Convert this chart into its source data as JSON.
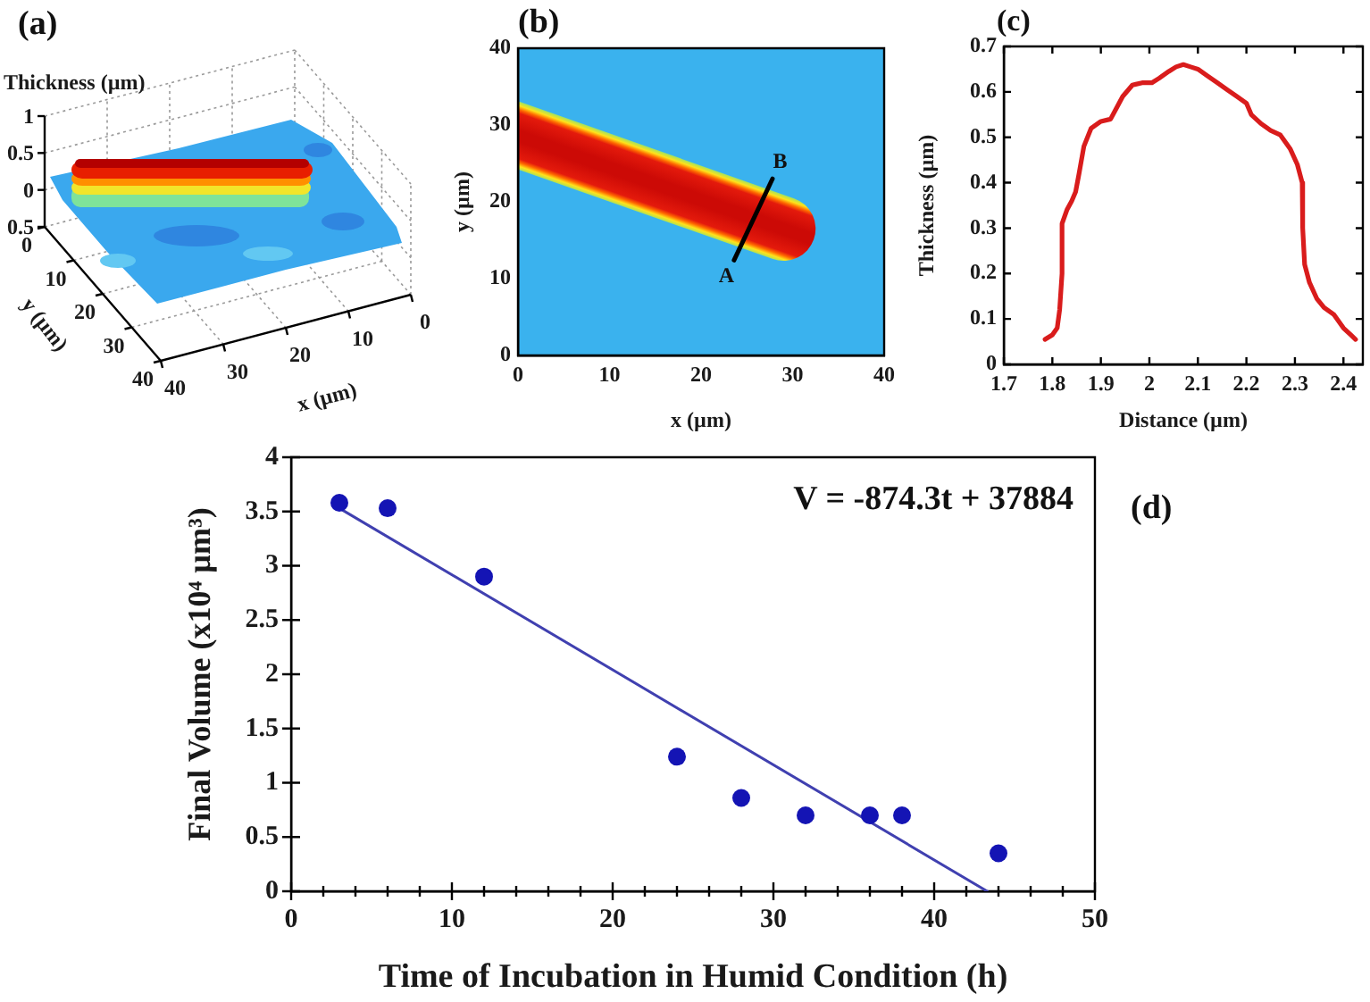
{
  "chart_data": [
    {
      "type": "other",
      "title": "(a)",
      "xlabel": "x (µm)",
      "ylabel": "y (µm)",
      "annotations": [
        "Thickness (µm)",
        "1",
        "0.5",
        "0",
        "0.5",
        "0",
        "10",
        "20",
        "30",
        "40",
        "40",
        "30",
        "20",
        "10",
        "0"
      ]
    },
    {
      "type": "line",
      "title": "(b)",
      "xlabel": "x (µm)",
      "ylabel": "y (µm)",
      "xlim": [
        0,
        40
      ],
      "xticks": [
        0,
        10,
        20,
        30,
        40
      ],
      "ylim": [
        0,
        40
      ],
      "yticks": [
        0,
        10,
        20,
        30,
        40
      ],
      "x": [
        23.6,
        27.8
      ],
      "values": [
        12.4,
        23
      ],
      "color": "#000000",
      "annotations": [
        {
          "text": "A",
          "x": 23.6,
          "y": 12.4
        },
        {
          "text": "B",
          "x": 27.8,
          "y": 23
        }
      ]
    },
    {
      "type": "line",
      "title": "(c)",
      "xlabel": "Distance (µm)",
      "ylabel": "Thickness (µm)",
      "xlim": [
        1.7,
        2.44
      ],
      "xticks": [
        1.7,
        1.8,
        1.9,
        2,
        2.1,
        2.2,
        2.3,
        2.4
      ],
      "ylim": [
        0,
        0.7
      ],
      "yticks": [
        0,
        0.1,
        0.2,
        0.3,
        0.4,
        0.5,
        0.6,
        0.7
      ],
      "x": [
        1.785,
        1.8,
        1.81,
        1.815,
        1.82,
        1.82,
        1.83,
        1.84,
        1.848,
        1.855,
        1.865,
        1.88,
        1.9,
        1.92,
        1.93,
        1.945,
        1.965,
        1.985,
        2.005,
        2.02,
        2.04,
        2.055,
        2.07,
        2.085,
        2.1,
        2.12,
        2.14,
        2.16,
        2.18,
        2.2,
        2.21,
        2.23,
        2.25,
        2.27,
        2.29,
        2.305,
        2.315,
        2.316,
        2.32,
        2.33,
        2.345,
        2.36,
        2.38,
        2.4,
        2.415,
        2.425
      ],
      "values": [
        0.055,
        0.065,
        0.08,
        0.12,
        0.2,
        0.31,
        0.34,
        0.36,
        0.38,
        0.42,
        0.48,
        0.52,
        0.535,
        0.54,
        0.56,
        0.59,
        0.615,
        0.62,
        0.62,
        0.63,
        0.645,
        0.655,
        0.66,
        0.655,
        0.65,
        0.635,
        0.62,
        0.605,
        0.59,
        0.575,
        0.55,
        0.53,
        0.515,
        0.505,
        0.475,
        0.44,
        0.4,
        0.3,
        0.22,
        0.18,
        0.145,
        0.125,
        0.11,
        0.08,
        0.065,
        0.055
      ],
      "color": "#d91c1c"
    },
    {
      "type": "scatter",
      "xlabel": "Time of Incubation in Humid Condition (h)",
      "ylabel": "Final Volume (x10⁴ µm³)",
      "xlim": [
        0,
        50
      ],
      "xticks": [
        0,
        {
          "value": 2,
          "label": null
        },
        {
          "value": 4,
          "label": null
        },
        {
          "value": 6,
          "label": null
        },
        {
          "value": 8,
          "label": null
        },
        10,
        {
          "value": 12,
          "label": null
        },
        {
          "value": 14,
          "label": null
        },
        {
          "value": 16,
          "label": null
        },
        {
          "value": 18,
          "label": null
        },
        20,
        {
          "value": 22,
          "label": null
        },
        {
          "value": 24,
          "label": null
        },
        {
          "value": 26,
          "label": null
        },
        {
          "value": 28,
          "label": null
        },
        30,
        {
          "value": 32,
          "label": null
        },
        {
          "value": 34,
          "label": null
        },
        {
          "value": 36,
          "label": null
        },
        {
          "value": 38,
          "label": null
        },
        40,
        {
          "value": 42,
          "label": null
        },
        {
          "value": 44,
          "label": null
        },
        {
          "value": 46,
          "label": null
        },
        {
          "value": 48,
          "label": null
        },
        50
      ],
      "ylim": [
        0,
        4
      ],
      "yticks": [
        0,
        0.5,
        1,
        1.5,
        2,
        2.5,
        3,
        3.5,
        4
      ],
      "series": [
        {
          "x": [
            3,
            6,
            12,
            24,
            28,
            32,
            36,
            38,
            44
          ],
          "values": [
            3.58,
            3.53,
            2.9,
            1.24,
            0.86,
            0.7,
            0.7,
            0.7,
            0.35
          ],
          "color": "#1414b4",
          "marker": "circle"
        },
        {
          "type": "line",
          "x": [
            3,
            43.3
          ],
          "values": [
            3.53,
            0
          ],
          "color": "#4040b0"
        }
      ],
      "annotations": [
        "V = -874.3t + 37884",
        "(d)"
      ]
    }
  ]
}
